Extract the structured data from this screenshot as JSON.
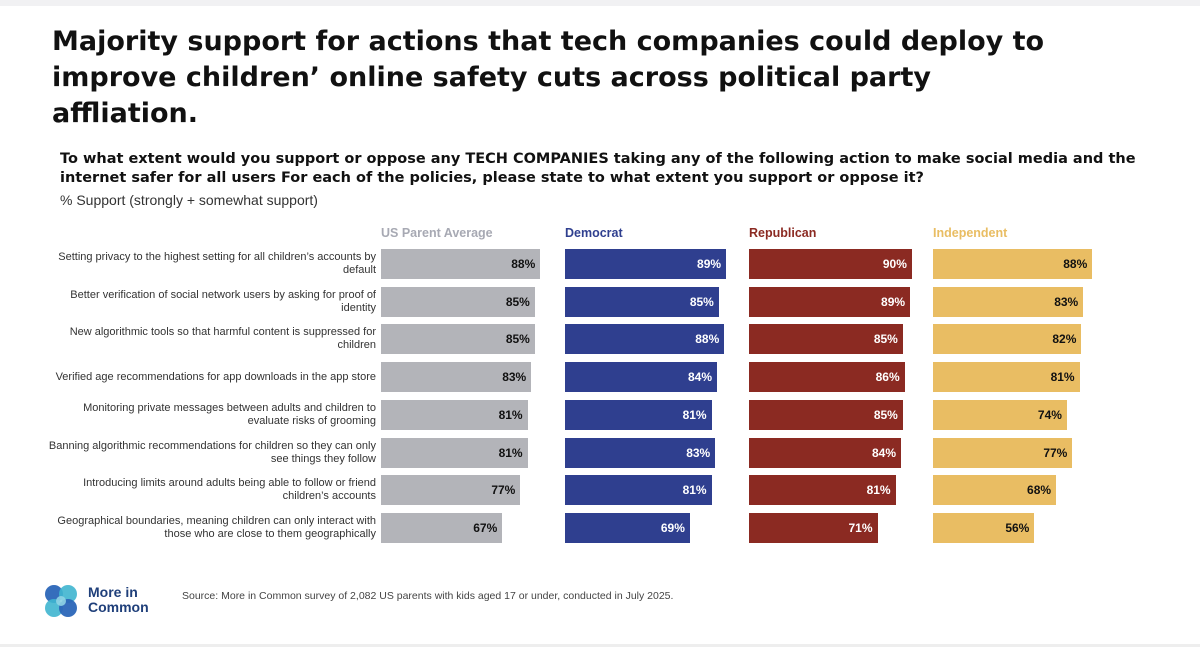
{
  "header": {
    "title": "Majority support for actions that tech companies could deploy to improve children’ online safety cuts across political party affliation.",
    "question": "To what extent would you support or oppose any TECH COMPANIES taking any of the following action to make social media and the internet safer for all users For each of the policies, please state to what extent you support or oppose it?",
    "measure": "% Support (strongly + somewhat support)"
  },
  "chart_data": {
    "type": "bar",
    "orientation": "horizontal",
    "layout": "small-multiples",
    "xlim": [
      0,
      100
    ],
    "value_suffix": "%",
    "categories": [
      "Setting privacy to the highest setting for all children’s accounts by default",
      "Better verification of social network users by asking for proof of identity",
      "New algorithmic tools so that harmful content is suppressed for children",
      "Verified age recommendations for app downloads in the app store",
      "Monitoring private messages between adults and children to evaluate risks of grooming",
      "Banning algorithmic recommendations for children so they can only see things they follow",
      "Introducing limits around adults being able to follow or friend children’s accounts",
      "Geographical boundaries, meaning children can only interact with those who are close to them geographically"
    ],
    "series": [
      {
        "name": "US Parent Average",
        "color": "#b3b4b9",
        "label_color": "#111111",
        "values": [
          88,
          85,
          85,
          83,
          81,
          81,
          77,
          67
        ]
      },
      {
        "name": "Democrat",
        "color": "#2f3f8f",
        "label_color": "#ffffff",
        "values": [
          89,
          85,
          88,
          84,
          81,
          83,
          81,
          69
        ]
      },
      {
        "name": "Republican",
        "color": "#8b2a22",
        "label_color": "#ffffff",
        "values": [
          90,
          89,
          85,
          86,
          85,
          84,
          81,
          71
        ]
      },
      {
        "name": "Independent",
        "color": "#e9bd63",
        "label_color": "#111111",
        "values": [
          88,
          83,
          82,
          81,
          74,
          77,
          68,
          56
        ]
      }
    ],
    "header_colors": [
      "#a7a9b3",
      "#2f3f8f",
      "#8b2a22",
      "#e9bd63"
    ]
  },
  "footer": {
    "logo_text": "More in Common",
    "source": "Source: More in Common survey of 2,082 US parents with kids aged 17 or under, conducted in July 2025."
  }
}
